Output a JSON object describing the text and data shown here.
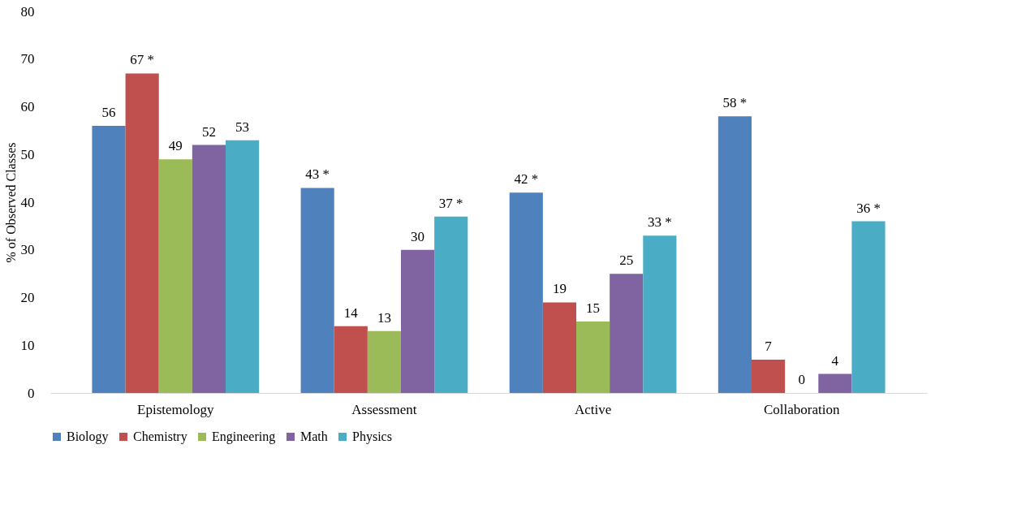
{
  "chart_data": {
    "type": "bar",
    "ylabel": "% of Observed Classes",
    "categories": [
      "Epistemology",
      "Assessment",
      "Active",
      "Collaboration"
    ],
    "series": [
      {
        "name": "Biology",
        "color": "#4f81bd",
        "values": [
          56,
          43,
          42,
          58
        ],
        "value_labels": [
          "56",
          "43 *",
          "42 *",
          "58 *"
        ]
      },
      {
        "name": "Chemistry",
        "color": "#c0504d",
        "values": [
          67,
          14,
          19,
          7
        ],
        "value_labels": [
          "67 *",
          "14",
          "19",
          "7"
        ]
      },
      {
        "name": "Engineering",
        "color": "#9bbb59",
        "values": [
          49,
          13,
          15,
          0
        ],
        "value_labels": [
          "49",
          "13",
          "15",
          "0"
        ]
      },
      {
        "name": "Math",
        "color": "#8064a2",
        "values": [
          52,
          30,
          25,
          4
        ],
        "value_labels": [
          "52",
          "30",
          "25",
          "4"
        ]
      },
      {
        "name": "Physics",
        "color": "#4bacc6",
        "values": [
          53,
          37,
          33,
          36
        ],
        "value_labels": [
          "53",
          "37 *",
          "33 *",
          "36 *"
        ]
      }
    ],
    "ylim": [
      0,
      80
    ],
    "yticks": [
      0,
      10,
      20,
      30,
      40,
      50,
      60,
      70,
      80
    ],
    "grid": false,
    "legend": "bottom"
  }
}
